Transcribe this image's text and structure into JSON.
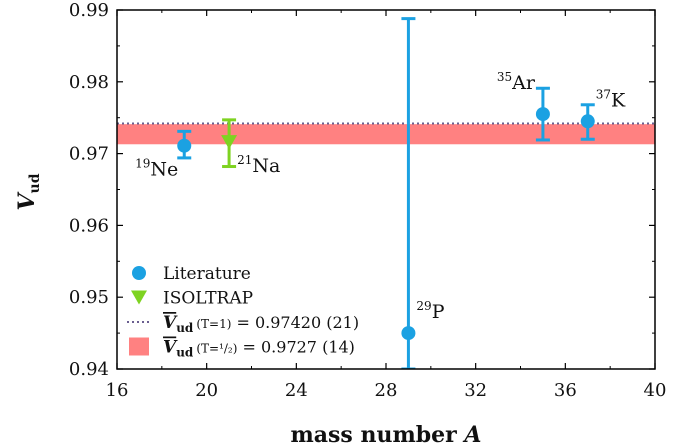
{
  "chart_data": {
    "type": "scatter",
    "xlabel": "mass number",
    "xlabel_var": "A",
    "ylabel_var": "V",
    "ylabel_sub": "ud",
    "xlim": [
      16,
      40
    ],
    "ylim": [
      0.94,
      0.99
    ],
    "x_ticks": [
      "16",
      "20",
      "24",
      "28",
      "32",
      "36",
      "40"
    ],
    "y_ticks": [
      "0.94",
      "0.95",
      "0.96",
      "0.97",
      "0.98",
      "0.99"
    ],
    "x_tick_values": [
      16,
      20,
      24,
      28,
      32,
      36,
      40
    ],
    "y_tick_values": [
      0.94,
      0.95,
      0.96,
      0.97,
      0.98,
      0.99
    ],
    "grid": false,
    "legend_position": "bottom-left",
    "series": [
      {
        "name": "Literature",
        "color": "#1ba1e2",
        "marker": "circle",
        "points": [
          {
            "label_sup": "19",
            "label": "Ne",
            "x": 19,
            "y": 0.9711,
            "ylow": 0.9694,
            "yhigh": 0.9731,
            "label_anchor": "left-below"
          },
          {
            "label_sup": "29",
            "label": "P",
            "x": 29,
            "y": 0.945,
            "ylow": 0.94,
            "yhigh": 0.9888,
            "label_anchor": "right-above"
          },
          {
            "label_sup": "35",
            "label": "Ar",
            "x": 35,
            "y": 0.9755,
            "ylow": 0.9719,
            "yhigh": 0.9791,
            "label_anchor": "left-above"
          },
          {
            "label_sup": "37",
            "label": "K",
            "x": 37,
            "y": 0.9745,
            "ylow": 0.972,
            "yhigh": 0.9768,
            "label_anchor": "right-above"
          }
        ]
      },
      {
        "name": "ISOLTRAP",
        "color": "#7ed321",
        "marker": "triangle-down",
        "points": [
          {
            "label_sup": "21",
            "label": "Na",
            "x": 21,
            "y": 0.9716,
            "ylow": 0.9682,
            "yhigh": 0.9747,
            "label_anchor": "right-below"
          }
        ]
      }
    ],
    "reference_lines": [
      {
        "type": "dotted-line",
        "color": "#6a5f90",
        "value": 0.9742,
        "legend_pre": "V",
        "legend_sub": "ud",
        "legend_small": "(T=1)",
        "legend_post": " = 0.97420 (21)"
      }
    ],
    "reference_bands": [
      {
        "type": "band",
        "color": "#ff6b6b",
        "center": 0.9727,
        "low": 0.9713,
        "high": 0.9741,
        "legend_pre": "V",
        "legend_sub": "ud",
        "legend_small": "(T=¹/₂)",
        "legend_post": " = 0.9727 (14)"
      }
    ]
  }
}
